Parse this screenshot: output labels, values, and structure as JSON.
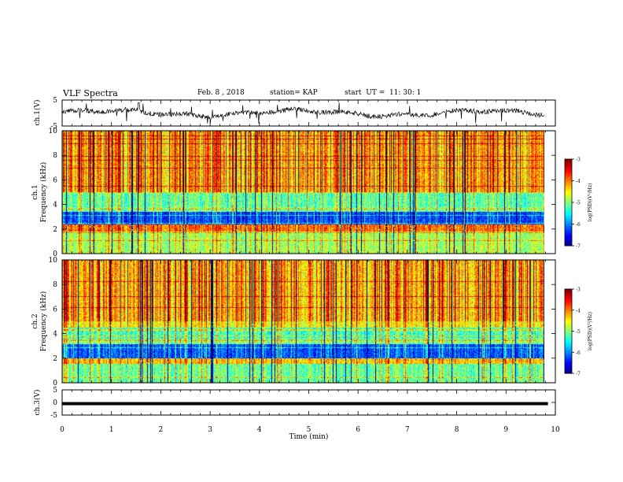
{
  "header": {
    "title": "VLF Spectra",
    "date": "Feb. 8 , 2018",
    "station": "station= KAP",
    "start_ut": "start  UT =  11: 30: 1"
  },
  "chart_data": [
    {
      "type": "line",
      "panel": "ch1-waveform",
      "ylabel": "ch.1(V)",
      "ylim": [
        -5,
        5
      ],
      "y_ticks": [
        "5",
        "-5"
      ],
      "xlim": [
        0,
        10
      ],
      "description_series": "noisy waveform around 0 V"
    },
    {
      "type": "heatmap",
      "panel": "ch1-spectrogram",
      "ylabel": "ch.1\nFrequency (kHz)",
      "ylabel_lines": [
        "ch.1",
        "Frequency (kHz)"
      ],
      "ylim": [
        0,
        10
      ],
      "y_ticks": [
        "0",
        "2",
        "4",
        "6",
        "8",
        "10"
      ],
      "xlim": [
        0,
        9.85
      ],
      "colorbar": {
        "label": "log(PSD)(V²/Hz)",
        "range": [
          -7,
          -3
        ],
        "ticks": [
          "-3",
          "-4",
          "-5",
          "-6",
          "-7"
        ]
      }
    },
    {
      "type": "heatmap",
      "panel": "ch2-spectrogram",
      "ylabel": "ch.2\nFrequency (kHz)",
      "ylabel_lines": [
        "ch.2",
        "Frequency (kHz)"
      ],
      "ylim": [
        0,
        10
      ],
      "y_ticks": [
        "0",
        "2",
        "4",
        "6",
        "8",
        "10"
      ],
      "xlim": [
        0,
        9.85
      ],
      "colorbar": {
        "label": "log(PSD)(V²/Hz)",
        "range": [
          -7,
          -3
        ],
        "ticks": [
          "-3",
          "-4",
          "-5",
          "-6",
          "-7"
        ]
      }
    },
    {
      "type": "line",
      "panel": "ch3-waveform",
      "ylabel": "ch.3(V)",
      "ylim": [
        -5,
        5
      ],
      "y_ticks": [
        "5",
        "0",
        "-5"
      ],
      "xlim": [
        0,
        10
      ],
      "series": [
        {
          "x": [
            0,
            9.85
          ],
          "y": [
            0,
            0
          ]
        }
      ],
      "xlabel": "Time (min)",
      "x_ticks": [
        "0",
        "1",
        "2",
        "3",
        "4",
        "5",
        "6",
        "7",
        "8",
        "9",
        "10"
      ]
    }
  ]
}
